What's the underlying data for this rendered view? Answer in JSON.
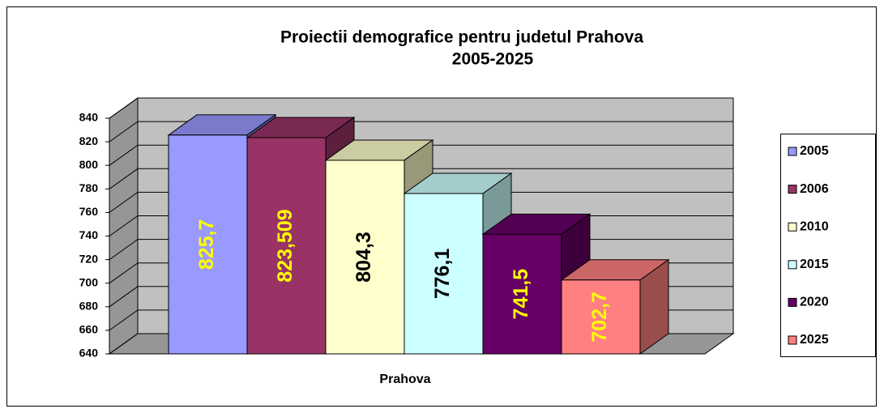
{
  "chart_data": {
    "type": "bar3d",
    "title": [
      "Proiectii demografice pentru judetul Prahova",
      "2005-2025"
    ],
    "categories": [
      "Prahova"
    ],
    "series": [
      {
        "name": "2005",
        "color": "#9999ff",
        "label_color": "#ffff00",
        "values": [
          825.7
        ],
        "value_labels": [
          "825,7"
        ]
      },
      {
        "name": "2006",
        "color": "#993366",
        "label_color": "#ffff00",
        "values": [
          823.509
        ],
        "value_labels": [
          "823,509"
        ]
      },
      {
        "name": "2010",
        "color": "#ffffcc",
        "label_color": "#000000",
        "values": [
          804.3
        ],
        "value_labels": [
          "804,3"
        ]
      },
      {
        "name": "2015",
        "color": "#ccffff",
        "label_color": "#000000",
        "values": [
          776.1
        ],
        "value_labels": [
          "776,1"
        ]
      },
      {
        "name": "2020",
        "color": "#660066",
        "label_color": "#ffff00",
        "values": [
          741.5
        ],
        "value_labels": [
          "741,5"
        ]
      },
      {
        "name": "2025",
        "color": "#ff8080",
        "label_color": "#ffff00",
        "values": [
          702.7
        ],
        "value_labels": [
          "702,7"
        ]
      }
    ],
    "ylim": [
      640,
      840
    ],
    "yticks": [
      640,
      660,
      680,
      700,
      720,
      740,
      760,
      780,
      800,
      820,
      840
    ],
    "grid": true,
    "legend": "right"
  }
}
